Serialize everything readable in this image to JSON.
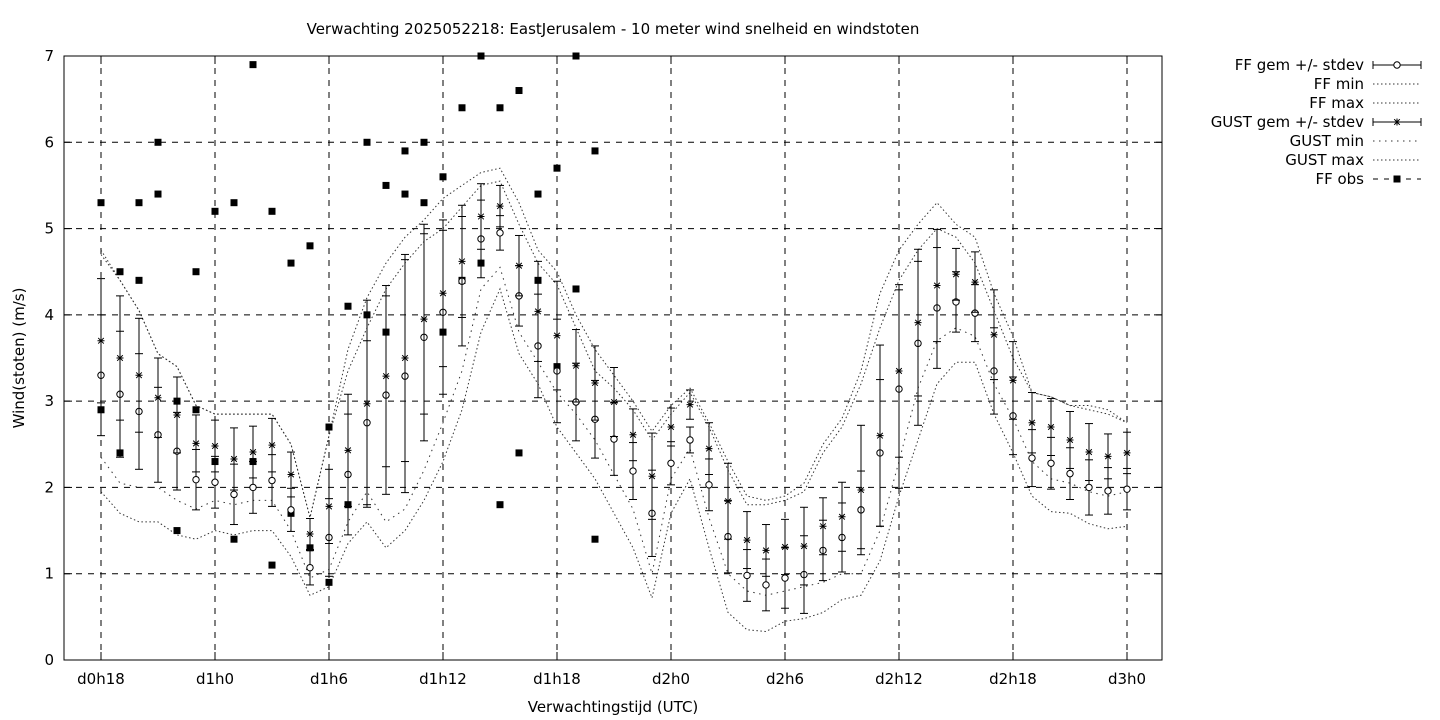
{
  "chart_data": {
    "type": "line",
    "title": "Verwachting 2025052218: EastJerusalem - 10 meter wind snelheid en windstoten",
    "xlabel": "Verwachtingstijd (UTC)",
    "ylabel": "Wind(stoten) (m/s)",
    "ylim": [
      0,
      7
    ],
    "yticks": [
      "0",
      "1",
      "2",
      "3",
      "4",
      "5",
      "6",
      "7"
    ],
    "x_unit": "hours from d0h18",
    "xlim": [
      -2,
      56
    ],
    "xticks": [
      {
        "x": 0,
        "label": "d0h18"
      },
      {
        "x": 6,
        "label": "d1h0"
      },
      {
        "x": 12,
        "label": "d1h6"
      },
      {
        "x": 18,
        "label": "d1h12"
      },
      {
        "x": 24,
        "label": "d1h18"
      },
      {
        "x": 30,
        "label": "d2h0"
      },
      {
        "x": 36,
        "label": "d2h6"
      },
      {
        "x": 42,
        "label": "d2h12"
      },
      {
        "x": 48,
        "label": "d2h18"
      },
      {
        "x": 54,
        "label": "d3h0"
      }
    ],
    "grid": true,
    "legend_position": "outside top-right",
    "series": [
      {
        "name": "FF gem +/- stdev",
        "style": "errorbar-circle",
        "x": [
          0,
          1,
          2,
          3,
          4,
          5,
          6,
          7,
          8,
          9,
          10,
          11,
          12,
          13,
          14,
          15,
          16,
          17,
          18,
          19,
          20,
          21,
          22,
          23,
          24,
          25,
          26,
          27,
          28,
          29,
          30,
          31,
          32,
          33,
          34,
          35,
          36,
          37,
          38,
          39,
          40,
          41,
          42,
          43,
          44,
          45,
          46,
          47,
          48,
          49,
          50,
          51,
          52,
          53,
          54
        ],
        "mean": [
          3.3,
          3.08,
          2.88,
          2.61,
          2.42,
          2.09,
          2.06,
          1.92,
          2.0,
          2.08,
          1.74,
          1.07,
          1.42,
          2.15,
          2.75,
          3.07,
          3.29,
          3.74,
          4.03,
          4.39,
          4.88,
          4.95,
          4.22,
          3.64,
          3.35,
          2.99,
          2.79,
          2.56,
          2.19,
          1.7,
          2.28,
          2.55,
          2.03,
          1.43,
          0.98,
          0.87,
          0.95,
          0.99,
          1.27,
          1.42,
          1.74,
          2.4,
          3.14,
          3.67,
          4.08,
          4.15,
          4.02,
          3.35,
          2.83,
          2.34,
          2.28,
          2.16,
          2.0,
          1.96,
          1.98
        ],
        "stdev": [
          0.7,
          0.73,
          0.67,
          0.55,
          0.45,
          0.35,
          0.3,
          0.35,
          0.3,
          0.3,
          0.25,
          0.2,
          0.45,
          0.7,
          0.95,
          1.15,
          1.35,
          1.2,
          0.95,
          0.75,
          0.45,
          0.2,
          0.35,
          0.6,
          0.6,
          0.45,
          0.45,
          0.42,
          0.33,
          0.5,
          0.25,
          0.15,
          0.3,
          0.42,
          0.3,
          0.3,
          0.35,
          0.45,
          0.35,
          0.4,
          0.45,
          0.85,
          1.15,
          0.95,
          0.7,
          0.35,
          0.33,
          0.5,
          0.45,
          0.33,
          0.3,
          0.3,
          0.32,
          0.27,
          0.24
        ]
      },
      {
        "name": "FF min",
        "style": "dotted",
        "x": [
          0,
          1,
          2,
          3,
          4,
          5,
          6,
          7,
          8,
          9,
          10,
          11,
          12,
          13,
          14,
          15,
          16,
          17,
          18,
          19,
          20,
          21,
          22,
          23,
          24,
          25,
          26,
          27,
          28,
          29,
          30,
          31,
          32,
          33,
          34,
          35,
          36,
          37,
          38,
          39,
          40,
          41,
          42,
          43,
          44,
          45,
          46,
          47,
          48,
          49,
          50,
          51,
          52,
          53,
          54
        ],
        "values": [
          1.95,
          1.7,
          1.6,
          1.6,
          1.45,
          1.4,
          1.5,
          1.45,
          1.5,
          1.5,
          1.2,
          0.75,
          0.85,
          1.35,
          1.6,
          1.3,
          1.5,
          1.85,
          2.3,
          2.9,
          3.8,
          4.3,
          3.55,
          3.2,
          2.7,
          2.4,
          2.1,
          1.7,
          1.3,
          0.72,
          1.7,
          2.1,
          1.3,
          0.55,
          0.35,
          0.33,
          0.45,
          0.48,
          0.55,
          0.7,
          0.75,
          1.15,
          1.9,
          2.55,
          3.2,
          3.45,
          3.45,
          2.85,
          2.4,
          1.9,
          1.72,
          1.7,
          1.58,
          1.52,
          1.55
        ]
      },
      {
        "name": "FF max",
        "style": "dotted",
        "x": [
          0,
          1,
          2,
          3,
          4,
          5,
          6,
          7,
          8,
          9,
          10,
          11,
          12,
          13,
          14,
          15,
          16,
          17,
          18,
          19,
          20,
          21,
          22,
          23,
          24,
          25,
          26,
          27,
          28,
          29,
          30,
          31,
          32,
          33,
          34,
          35,
          36,
          37,
          38,
          39,
          40,
          41,
          42,
          43,
          44,
          45,
          46,
          47,
          48,
          49,
          50,
          51,
          52,
          53,
          54
        ],
        "values": [
          4.7,
          4.4,
          4.05,
          3.55,
          3.4,
          2.95,
          2.85,
          2.85,
          2.85,
          2.85,
          2.5,
          1.65,
          2.6,
          3.35,
          3.85,
          4.3,
          4.6,
          4.85,
          5.0,
          5.25,
          5.5,
          5.55,
          5.05,
          4.6,
          4.35,
          3.85,
          3.35,
          3.15,
          2.9,
          2.55,
          2.85,
          3.1,
          2.7,
          2.2,
          1.8,
          1.8,
          1.85,
          1.95,
          2.4,
          2.7,
          3.2,
          3.85,
          4.4,
          4.75,
          5.0,
          4.9,
          4.6,
          4.05,
          3.5,
          3.1,
          3.05,
          2.95,
          2.95,
          2.9,
          2.75
        ]
      },
      {
        "name": "GUST gem +/- stdev",
        "style": "errorbar-star",
        "x": [
          0,
          1,
          2,
          3,
          4,
          5,
          6,
          7,
          8,
          9,
          10,
          11,
          12,
          13,
          14,
          15,
          16,
          17,
          18,
          19,
          20,
          21,
          22,
          23,
          24,
          25,
          26,
          27,
          28,
          29,
          30,
          31,
          32,
          33,
          34,
          35,
          36,
          37,
          38,
          39,
          40,
          41,
          42,
          43,
          44,
          45,
          46,
          47,
          48,
          49,
          50,
          51,
          52,
          53,
          54
        ],
        "mean": [
          3.7,
          3.5,
          3.3,
          3.04,
          2.84,
          2.51,
          2.48,
          2.33,
          2.41,
          2.49,
          2.15,
          1.46,
          1.78,
          2.43,
          2.97,
          3.29,
          3.5,
          3.95,
          4.25,
          4.62,
          5.14,
          5.26,
          4.57,
          4.04,
          3.76,
          3.41,
          3.21,
          2.99,
          2.61,
          2.13,
          2.7,
          2.96,
          2.45,
          1.84,
          1.39,
          1.27,
          1.31,
          1.32,
          1.55,
          1.66,
          1.97,
          2.6,
          3.35,
          3.91,
          4.34,
          4.47,
          4.38,
          3.77,
          3.24,
          2.75,
          2.7,
          2.55,
          2.41,
          2.36,
          2.4
        ],
        "stdev": [
          0.72,
          0.72,
          0.66,
          0.46,
          0.44,
          0.33,
          0.3,
          0.36,
          0.3,
          0.31,
          0.26,
          0.18,
          0.43,
          0.65,
          1.2,
          1.05,
          1.2,
          1.1,
          0.85,
          0.65,
          0.38,
          0.24,
          0.35,
          0.58,
          0.63,
          0.42,
          0.43,
          0.4,
          0.3,
          0.5,
          0.22,
          0.17,
          0.3,
          0.44,
          0.33,
          0.3,
          0.32,
          0.45,
          0.33,
          0.4,
          0.75,
          1.05,
          1.0,
          0.85,
          0.65,
          0.3,
          0.35,
          0.52,
          0.45,
          0.35,
          0.33,
          0.33,
          0.33,
          0.26,
          0.24
        ]
      },
      {
        "name": "GUST min",
        "style": "dotted-wide",
        "x": [
          0,
          1,
          2,
          3,
          4,
          5,
          6,
          7,
          8,
          9,
          10,
          11,
          12,
          13,
          14,
          15,
          16,
          17,
          18,
          19,
          20,
          21,
          22,
          23,
          24,
          25,
          26,
          27,
          28,
          29,
          30,
          31,
          32,
          33,
          34,
          35,
          36,
          37,
          38,
          39,
          40,
          41,
          42,
          43,
          44,
          45,
          46,
          47,
          48,
          49,
          50,
          51,
          52,
          53,
          54
        ],
        "values": [
          2.35,
          2.05,
          2.0,
          2.0,
          1.85,
          1.75,
          1.85,
          1.8,
          1.85,
          1.85,
          1.5,
          0.95,
          1.05,
          1.6,
          1.95,
          1.6,
          1.75,
          2.2,
          2.75,
          3.35,
          4.3,
          4.55,
          3.8,
          3.45,
          3.1,
          2.85,
          2.55,
          2.15,
          1.75,
          1.0,
          2.1,
          2.45,
          1.65,
          1.0,
          0.8,
          0.75,
          0.8,
          0.85,
          0.9,
          1.0,
          1.0,
          1.5,
          2.3,
          3.15,
          3.7,
          3.85,
          3.75,
          3.2,
          2.8,
          2.3,
          2.1,
          2.05,
          1.95,
          1.9,
          1.95
        ]
      },
      {
        "name": "GUST max",
        "style": "dotted",
        "x": [
          0,
          1,
          2,
          3,
          4,
          5,
          6,
          7,
          8,
          9,
          10,
          11,
          12,
          13,
          14,
          15,
          16,
          17,
          18,
          19,
          20,
          21,
          22,
          23,
          24,
          25,
          26,
          27,
          28,
          29,
          30,
          31,
          32,
          33,
          34,
          35,
          36,
          37,
          38,
          39,
          40,
          41,
          42,
          43,
          44,
          45,
          46,
          47,
          48,
          49,
          50,
          51,
          52,
          53,
          54
        ],
        "values": [
          4.75,
          4.4,
          4.05,
          3.55,
          3.4,
          2.95,
          2.85,
          2.85,
          2.85,
          2.85,
          2.5,
          1.65,
          2.6,
          3.6,
          4.2,
          4.6,
          4.9,
          5.1,
          5.35,
          5.5,
          5.65,
          5.7,
          5.3,
          4.75,
          4.5,
          4.0,
          3.6,
          3.3,
          3.0,
          2.65,
          2.95,
          3.15,
          2.75,
          2.3,
          1.9,
          1.85,
          1.9,
          2.05,
          2.5,
          2.8,
          3.35,
          4.25,
          4.75,
          5.05,
          5.3,
          5.05,
          4.9,
          4.25,
          3.75,
          3.1,
          3.05,
          2.95,
          2.9,
          2.85,
          2.75
        ]
      },
      {
        "name": "FF obs",
        "style": "squares",
        "points": [
          [
            0,
            5.3
          ],
          [
            0,
            2.9
          ],
          [
            1,
            4.5
          ],
          [
            1,
            2.4
          ],
          [
            2,
            5.3
          ],
          [
            2,
            4.4
          ],
          [
            3,
            6.0
          ],
          [
            3,
            5.4
          ],
          [
            4,
            3.0
          ],
          [
            4,
            1.5
          ],
          [
            5,
            4.5
          ],
          [
            5,
            2.9
          ],
          [
            6,
            5.2
          ],
          [
            6,
            2.3
          ],
          [
            7,
            5.3
          ],
          [
            7,
            1.4
          ],
          [
            8,
            6.9
          ],
          [
            8,
            2.3
          ],
          [
            9,
            5.2
          ],
          [
            9,
            1.1
          ],
          [
            10,
            4.6
          ],
          [
            10,
            1.7
          ],
          [
            11,
            4.8
          ],
          [
            11,
            1.3
          ],
          [
            12,
            2.7
          ],
          [
            12,
            0.9
          ],
          [
            13,
            4.1
          ],
          [
            13,
            1.8
          ],
          [
            14,
            6.0
          ],
          [
            14,
            4.0
          ],
          [
            15,
            5.5
          ],
          [
            15,
            3.8
          ],
          [
            16,
            5.9
          ],
          [
            16,
            5.4
          ],
          [
            17,
            6.0
          ],
          [
            17,
            5.3
          ],
          [
            18,
            5.6
          ],
          [
            18,
            3.8
          ],
          [
            19,
            6.4
          ],
          [
            19,
            4.4
          ],
          [
            20,
            7.0
          ],
          [
            20,
            4.6
          ],
          [
            21,
            6.4
          ],
          [
            21,
            1.8
          ],
          [
            22,
            6.6
          ],
          [
            22,
            2.4
          ],
          [
            23,
            5.4
          ],
          [
            23,
            4.4
          ],
          [
            24,
            5.7
          ],
          [
            24,
            3.4
          ],
          [
            25,
            7.0
          ],
          [
            25,
            4.3
          ],
          [
            26,
            5.9
          ],
          [
            26,
            1.4
          ]
        ]
      }
    ]
  }
}
